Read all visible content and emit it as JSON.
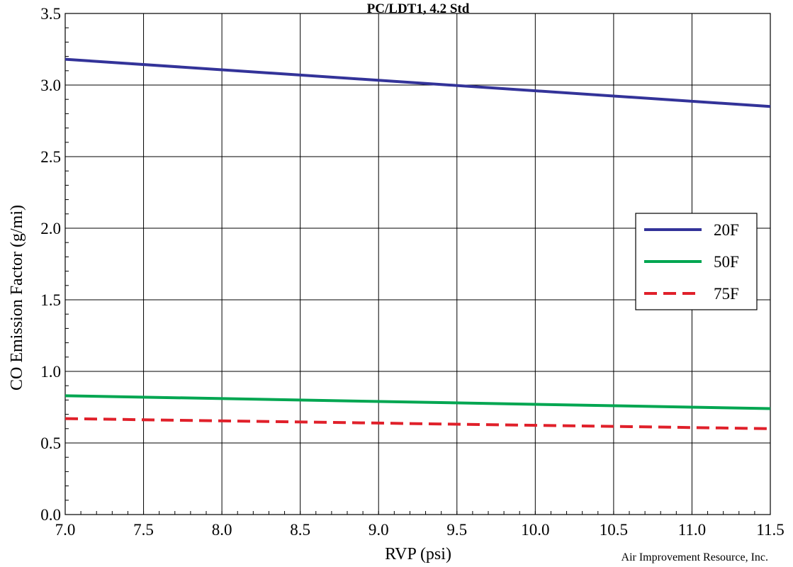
{
  "chart_data": {
    "type": "line",
    "title": "PC/LDT1, 4.2 Std",
    "xlabel": "RVP (psi)",
    "ylabel": "CO Emission Factor (g/mi)",
    "xlim": [
      7.0,
      11.5
    ],
    "ylim": [
      0.0,
      3.5
    ],
    "x_ticks": [
      "7.0",
      "7.5",
      "8.0",
      "8.5",
      "9.0",
      "9.5",
      "10.0",
      "10.5",
      "11.0",
      "11.5"
    ],
    "y_ticks": [
      "0.0",
      "0.5",
      "1.0",
      "1.5",
      "2.0",
      "2.5",
      "3.0",
      "3.5"
    ],
    "grid": true,
    "legend_position": "right",
    "series": [
      {
        "name": "20F",
        "color": "#333399",
        "style": "solid",
        "x": [
          7.0,
          11.5
        ],
        "y": [
          3.18,
          2.85
        ]
      },
      {
        "name": "50F",
        "color": "#00a651",
        "style": "solid",
        "x": [
          7.0,
          11.5
        ],
        "y": [
          0.83,
          0.74
        ]
      },
      {
        "name": "75F",
        "color": "#e0202a",
        "style": "dashed",
        "x": [
          7.0,
          11.5
        ],
        "y": [
          0.67,
          0.6
        ]
      }
    ]
  },
  "credit": "Air Improvement Resource, Inc."
}
